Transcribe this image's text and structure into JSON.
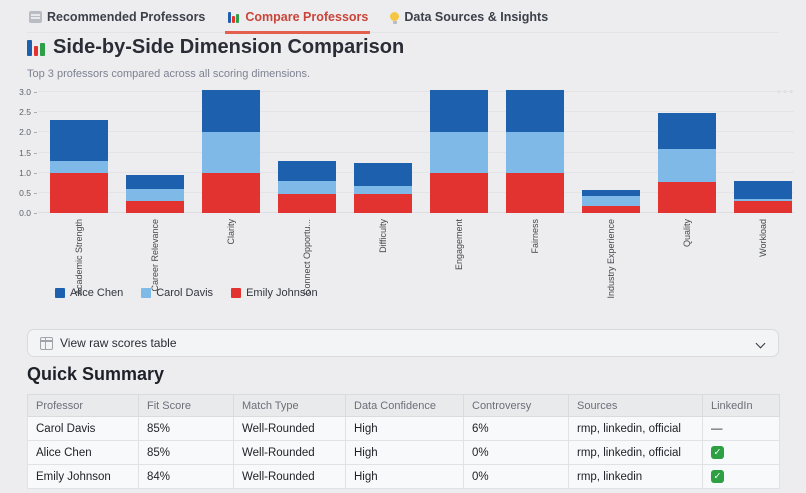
{
  "tabs": [
    {
      "label": "Recommended Professors",
      "icon": "list-icon",
      "active": false
    },
    {
      "label": "Compare Professors",
      "icon": "bar-chart-icon",
      "active": true
    },
    {
      "label": "Data Sources & Insights",
      "icon": "lightbulb-icon",
      "active": false
    }
  ],
  "header": {
    "title": "Side-by-Side Dimension Comparison",
    "subtitle": "Top 3 professors compared across all scoring dimensions."
  },
  "chart_data": {
    "type": "bar",
    "stacked": true,
    "title": "",
    "xlabel": "",
    "ylabel": "",
    "ylim": [
      0,
      3.05
    ],
    "yticks": [
      0.0,
      0.5,
      1.0,
      1.5,
      2.0,
      2.5,
      3.0
    ],
    "grid": true,
    "legend_position": "bottom-left",
    "categories": [
      "Academic Strength",
      "Career Relevance",
      "Clarity",
      "Connect Opportu...",
      "Difficulty",
      "Engagement",
      "Fairness",
      "Industry Experience",
      "Quality",
      "Workload"
    ],
    "series": [
      {
        "name": "Emily Johnson",
        "color": "#e23331",
        "values": [
          1.0,
          0.3,
          1.0,
          0.46,
          0.48,
          1.0,
          1.0,
          0.18,
          0.78,
          0.3
        ]
      },
      {
        "name": "Carol Davis",
        "color": "#7fb9e7",
        "values": [
          0.3,
          0.3,
          1.0,
          0.34,
          0.2,
          1.0,
          1.0,
          0.24,
          0.8,
          0.05
        ]
      },
      {
        "name": "Alice Chen",
        "color": "#1c60ae",
        "values": [
          1.0,
          0.35,
          1.05,
          0.48,
          0.55,
          1.05,
          1.05,
          0.16,
          0.9,
          0.45
        ]
      }
    ]
  },
  "legend": [
    {
      "name": "Alice Chen",
      "color": "#1c60ae"
    },
    {
      "name": "Carol Davis",
      "color": "#7fb9e7"
    },
    {
      "name": "Emily Johnson",
      "color": "#e23331"
    }
  ],
  "chart_menu": "···",
  "expander": {
    "label": "View raw scores table",
    "icon": "table-icon"
  },
  "summary": {
    "title": "Quick Summary",
    "table": {
      "columns": [
        "Professor",
        "Fit Score",
        "Match Type",
        "Data Confidence",
        "Controversy",
        "Sources",
        "LinkedIn"
      ],
      "rows": [
        [
          "Carol Davis",
          "85%",
          "Well-Rounded",
          "High",
          "6%",
          "rmp, linkedin, official",
          "—"
        ],
        [
          "Alice Chen",
          "85%",
          "Well-Rounded",
          "High",
          "0%",
          "rmp, linkedin, official",
          "check"
        ],
        [
          "Emily Johnson",
          "84%",
          "Well-Rounded",
          "High",
          "0%",
          "rmp, linkedin",
          "check"
        ]
      ]
    }
  },
  "colors": {
    "accent_red": "#e4604e",
    "active_tab_text": "#c9453a",
    "check_green": "#2ea043",
    "page_bg": "#ededef"
  }
}
